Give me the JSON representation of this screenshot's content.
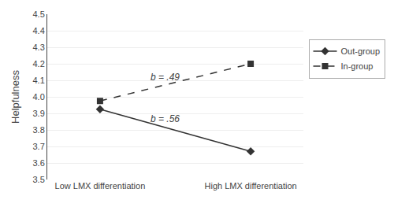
{
  "chart_data": {
    "type": "line",
    "categories": [
      "Low LMX differentiation",
      "High LMX differentiation"
    ],
    "series": [
      {
        "name": "Out-group",
        "color": "#333333",
        "values": [
          3.925,
          3.67
        ],
        "marker": "diamond",
        "line_style": "solid"
      },
      {
        "name": "In-group",
        "color": "#333333",
        "values": [
          3.975,
          4.2
        ],
        "marker": "square",
        "line_style": "dash"
      }
    ],
    "ylabel": "Helpfulness",
    "ylim": [
      3.5,
      4.5
    ],
    "yticks": [
      3.5,
      3.6,
      3.7,
      3.8,
      3.9,
      {
        "value": 4,
        "label": "4.0"
      },
      4.1,
      4.2,
      4.3,
      4.4,
      4.5
    ],
    "annotations": [
      {
        "text": "b = .49",
        "x": 0.43,
        "y": 4.075
      },
      {
        "text": "b = .56",
        "x": 0.43,
        "y": 3.825
      }
    ],
    "grid": true,
    "legend": "right"
  }
}
